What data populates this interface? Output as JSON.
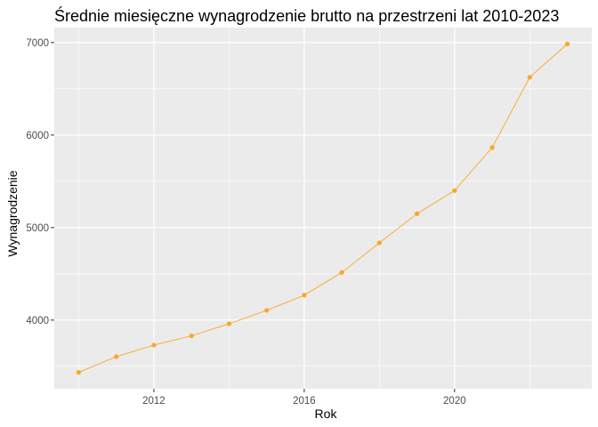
{
  "chart_data": {
    "type": "line",
    "title": "Średnie miesięczne wynagrodzenie brutto na przestrzeni lat 2010-2023",
    "xlabel": "Rok",
    "ylabel": "Wynagrodzenie",
    "x": [
      2010,
      2011,
      2012,
      2013,
      2014,
      2015,
      2016,
      2017,
      2018,
      2019,
      2020,
      2021,
      2022,
      2023
    ],
    "values": [
      3435,
      3605,
      3730,
      3830,
      3960,
      4105,
      4270,
      4515,
      4835,
      5150,
      5400,
      5865,
      6625,
      6985
    ],
    "xlim": [
      2009.35,
      2023.65
    ],
    "ylim": [
      3258,
      7162
    ],
    "x_ticks": [
      2012,
      2016,
      2020
    ],
    "y_ticks": [
      4000,
      5000,
      6000,
      7000
    ],
    "x_tick_labels": [
      "2012",
      "2016",
      "2020"
    ],
    "y_tick_labels": [
      "4000",
      "5000",
      "6000",
      "7000"
    ],
    "grid": true,
    "legend": "none",
    "colors": {
      "series": "#F9A825",
      "panel": "#EBEBEB",
      "grid": "#FFFFFF"
    }
  }
}
